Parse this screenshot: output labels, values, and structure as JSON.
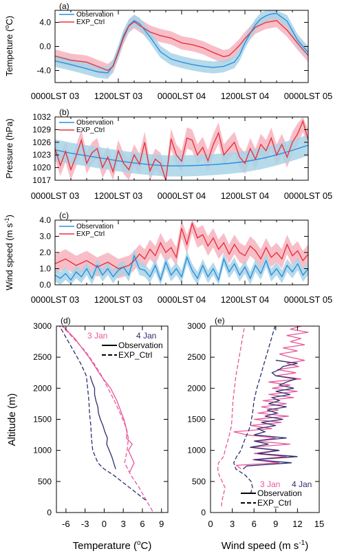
{
  "colors": {
    "observation": "#2a8ee0",
    "exp_ctrl": "#e8323c",
    "obs_band": "#a8d4e6",
    "exp_band": "#f5a8b5",
    "jan3": "#e8569a",
    "jan4": "#2b2d6e"
  },
  "time_axis_labels": [
    "0000LST 03",
    "1200LST 03",
    "0000LST 04",
    "1200LST 04",
    "0000LST 05"
  ],
  "chart_data": [
    {
      "panel": "(a)",
      "type": "line",
      "ylabel": "Tempeture (°C)",
      "ylabel_main": "Tempeture (",
      "ylabel_unit": "o",
      "ylabel_tail": "C)",
      "xlim_hours": [
        0,
        48
      ],
      "ylim": [
        -6,
        6
      ],
      "yticks": [
        4,
        0,
        -4
      ],
      "ytick_labels": [
        "4.0",
        "0.0",
        "-4.0"
      ],
      "legend": [
        "Observation",
        "EXP_Ctrl"
      ],
      "series": [
        {
          "name": "Observation",
          "x": [
            0,
            3,
            6,
            8,
            10,
            11,
            12,
            13,
            14,
            15,
            16,
            18,
            20,
            22,
            24,
            26,
            28,
            30,
            32,
            34,
            35,
            36,
            37,
            38,
            39,
            40,
            41,
            42,
            44,
            46,
            48
          ],
          "y": [
            -2.4,
            -3.0,
            -3.7,
            -4.2,
            -4.4,
            -3.2,
            -0.8,
            1.8,
            3.5,
            4.3,
            3.8,
            1.6,
            -0.9,
            -2.1,
            -2.6,
            -3.0,
            -3.3,
            -3.5,
            -3.3,
            -2.6,
            -1.4,
            0.6,
            2.2,
            3.6,
            4.6,
            5.1,
            5.4,
            5.5,
            4.2,
            1.0,
            -1.0
          ],
          "band_width": 1.0
        },
        {
          "name": "EXP_Ctrl",
          "x": [
            0,
            3,
            6,
            8,
            10,
            11,
            12,
            13,
            14,
            15,
            16,
            18,
            20,
            22,
            24,
            26,
            28,
            30,
            32,
            33,
            34,
            35,
            36,
            38,
            40,
            42,
            44,
            46,
            48
          ],
          "y": [
            -1.6,
            -2.3,
            -2.6,
            -3.3,
            -4.0,
            -3.3,
            -1.0,
            1.5,
            3.4,
            4.1,
            3.5,
            2.4,
            1.8,
            1.4,
            0.6,
            0.3,
            -0.2,
            -1.0,
            -1.7,
            -1.5,
            -0.7,
            0.2,
            1.3,
            3.2,
            4.0,
            4.3,
            2.7,
            0.5,
            -1.5
          ],
          "band_width": 1.1
        }
      ]
    },
    {
      "panel": "(b)",
      "type": "line",
      "ylabel": "Pressure (hPa)",
      "xlim_hours": [
        0,
        48
      ],
      "ylim": [
        1017,
        1032
      ],
      "yticks": [
        1032,
        1029,
        1026,
        1023,
        1020,
        1017
      ],
      "ytick_labels": [
        "1032",
        "1029",
        "1026",
        "1023",
        "1020",
        "1017"
      ],
      "legend": [
        "Observation",
        "EXP_Ctrl"
      ],
      "series": [
        {
          "name": "Observation",
          "x": [
            0,
            3,
            6,
            9,
            12,
            15,
            18,
            21,
            24,
            27,
            30,
            33,
            36,
            39,
            42,
            45,
            48
          ],
          "y": [
            1024.2,
            1023.4,
            1022.8,
            1022.2,
            1021.6,
            1021.1,
            1020.7,
            1020.4,
            1020.4,
            1020.5,
            1020.7,
            1021.0,
            1021.4,
            1022.1,
            1023.0,
            1024.1,
            1025.3
          ],
          "band_width": 2.5
        },
        {
          "name": "EXP_Ctrl",
          "x": [
            0,
            1,
            2,
            3,
            4,
            5,
            6,
            7,
            8,
            9,
            10,
            11,
            12,
            13,
            14,
            15,
            16,
            17,
            18,
            19,
            20,
            21,
            22,
            23,
            24,
            25,
            26,
            27,
            28,
            29,
            30,
            31,
            32,
            33,
            34,
            35,
            36,
            37,
            38,
            39,
            40,
            41,
            42,
            43,
            44,
            45,
            46,
            47,
            48
          ],
          "y": [
            1024.5,
            1020.5,
            1023.8,
            1019.5,
            1022.8,
            1026.5,
            1021.0,
            1023.5,
            1024.5,
            1020.0,
            1022.5,
            1019.0,
            1024.0,
            1021.0,
            1019.5,
            1023.0,
            1020.8,
            1026.0,
            1019.2,
            1022.0,
            1021.0,
            1017.0,
            1026.8,
            1023.0,
            1021.5,
            1027.0,
            1026.5,
            1023.0,
            1024.8,
            1021.6,
            1025.5,
            1028.2,
            1023.0,
            1024.5,
            1026.0,
            1022.5,
            1021.0,
            1024.5,
            1022.0,
            1025.5,
            1024.0,
            1027.0,
            1023.0,
            1025.5,
            1022.5,
            1026.0,
            1028.0,
            1031.0,
            1026.5
          ],
          "band_width": 2.5
        }
      ]
    },
    {
      "panel": "(c)",
      "type": "line",
      "ylabel": "Wind speed (m s⁻¹)",
      "ylabel_main": "Wind speed (m s",
      "ylabel_unit": "-1",
      "ylabel_tail": ")",
      "xlim_hours": [
        0,
        48
      ],
      "ylim": [
        0,
        4
      ],
      "yticks": [
        4,
        3,
        2,
        1,
        0
      ],
      "ytick_labels": [
        "4.0",
        "3.0",
        "2.0",
        "1.0",
        "0.0"
      ],
      "legend": [
        "Observation",
        "EXP_Ctrl"
      ],
      "series": [
        {
          "name": "Observation",
          "x": [
            0,
            1,
            2,
            3,
            4,
            5,
            6,
            7,
            8,
            9,
            10,
            11,
            12,
            13,
            14,
            15,
            16,
            17,
            18,
            19,
            20,
            21,
            22,
            23,
            24,
            25,
            26,
            27,
            28,
            29,
            30,
            31,
            32,
            33,
            34,
            35,
            36,
            37,
            38,
            39,
            40,
            41,
            42,
            43,
            44,
            45,
            46,
            47,
            48
          ],
          "y": [
            0.6,
            0.4,
            0.7,
            0.3,
            0.8,
            0.5,
            1.0,
            0.4,
            1.2,
            0.6,
            1.0,
            0.5,
            0.9,
            1.1,
            0.6,
            1.8,
            1.0,
            0.9,
            0.5,
            1.2,
            0.3,
            1.4,
            0.6,
            1.0,
            0.5,
            1.7,
            0.9,
            0.4,
            1.2,
            0.5,
            1.0,
            0.3,
            1.6,
            0.8,
            1.3,
            0.6,
            1.1,
            0.4,
            1.2,
            0.7,
            1.5,
            0.6,
            1.0,
            0.5,
            1.2,
            0.8,
            1.3,
            0.6,
            1.0
          ],
          "band_width": 0.4
        },
        {
          "name": "EXP_Ctrl",
          "x": [
            0,
            2,
            4,
            6,
            8,
            10,
            12,
            14,
            15,
            16,
            17,
            18,
            19,
            20,
            21,
            22,
            23,
            24,
            25,
            26,
            27,
            28,
            29,
            30,
            31,
            32,
            33,
            34,
            35,
            36,
            37,
            38,
            39,
            40,
            41,
            42,
            43,
            44,
            45,
            46,
            47,
            48
          ],
          "y": [
            1.3,
            1.6,
            1.2,
            1.5,
            1.1,
            1.4,
            1.0,
            1.2,
            1.5,
            1.9,
            1.6,
            2.2,
            1.8,
            2.6,
            2.0,
            2.3,
            1.7,
            3.5,
            2.5,
            3.8,
            2.9,
            3.1,
            2.4,
            2.9,
            2.2,
            2.6,
            1.9,
            2.5,
            2.0,
            1.8,
            2.4,
            2.1,
            1.6,
            2.3,
            1.7,
            2.0,
            1.6,
            2.5,
            1.8,
            2.1,
            1.5,
            1.9
          ],
          "band_width": 0.6
        }
      ]
    },
    {
      "panel": "(d)",
      "type": "line",
      "xlabel": "Temperature (°C)",
      "xlabel_main": "Temperature (",
      "xlabel_unit": "o",
      "xlabel_tail": "C)",
      "ylabel": "Altitude (m)",
      "xlim": [
        -7.5,
        10
      ],
      "ylim": [
        0,
        3000
      ],
      "xticks": [
        -6,
        -3,
        0,
        3,
        6,
        9
      ],
      "yticks": [
        0,
        500,
        1000,
        1500,
        2000,
        2500,
        3000
      ],
      "legend_dates": [
        "3 Jan",
        "4 Jan"
      ],
      "legend": [
        "Observation",
        "EXP_Ctrl"
      ],
      "series": [
        {
          "name": "3 Jan Observation",
          "date": "3 Jan",
          "dashed": false,
          "y": [
            650,
            800,
            1000,
            1100,
            1200,
            1300,
            1500,
            1800,
            2000,
            2200,
            2500,
            2800,
            3000
          ],
          "x": [
            4.0,
            4.7,
            3.8,
            4.4,
            3.5,
            3.6,
            3.1,
            2.0,
            1.0,
            -0.5,
            -2.4,
            -4.6,
            -6.5
          ]
        },
        {
          "name": "4 Jan Observation",
          "date": "4 Jan",
          "dashed": false,
          "y": [
            700,
            800,
            900,
            1000,
            1100,
            1200,
            1300,
            1400,
            1500,
            1600,
            1700,
            1800,
            1900,
            2000,
            2100,
            2200
          ],
          "x": [
            1.8,
            1.5,
            1.2,
            0.8,
            0.4,
            0.5,
            0.1,
            -0.2,
            -0.6,
            -0.9,
            -1.0,
            -1.3,
            -1.5,
            -1.5,
            -1.9,
            -2.2
          ]
        },
        {
          "name": "3 Jan EXP_Ctrl",
          "date": "3 Jan",
          "dashed": true,
          "y": [
            20,
            200,
            400,
            600,
            800,
            1000,
            1200,
            1400,
            1600,
            1800,
            2000,
            2200,
            2400,
            2600,
            2800,
            3000
          ],
          "x": [
            7.6,
            6.6,
            5.5,
            4.2,
            3.2,
            3.6,
            3.8,
            3.3,
            2.5,
            1.6,
            0.6,
            -0.4,
            -1.6,
            -3.0,
            -4.8,
            -6.6
          ]
        },
        {
          "name": "4 Jan EXP_Ctrl",
          "date": "4 Jan",
          "dashed": true,
          "y": [
            200,
            400,
            600,
            700,
            800,
            1000,
            1200,
            1400,
            1600,
            1800,
            2000,
            2200,
            2400,
            2600,
            2800,
            3000
          ],
          "x": [
            6.5,
            4.0,
            1.5,
            0.0,
            -1.0,
            -1.8,
            -2.0,
            -2.1,
            -2.3,
            -2.4,
            -2.6,
            -2.8,
            -3.7,
            -4.8,
            -5.9,
            -7.0
          ]
        }
      ]
    },
    {
      "panel": "(e)",
      "type": "line",
      "xlabel": "Wind speed (m s⁻¹)",
      "xlabel_main": "Wind speed (m s",
      "xlabel_unit": "-1",
      "xlabel_tail": ")",
      "xlim": [
        0,
        15
      ],
      "ylim": [
        0,
        3000
      ],
      "xticks": [
        0,
        3,
        6,
        9,
        12,
        15
      ],
      "yticks": [
        0,
        500,
        1000,
        1500,
        2000,
        2500,
        3000
      ],
      "legend_dates": [
        "3 Jan",
        "4 Jan"
      ],
      "legend": [
        "Observation",
        "EXP_Ctrl"
      ],
      "series": [
        {
          "name": "3 Jan Observation",
          "date": "3 Jan",
          "dashed": false,
          "y": [
            700,
            760,
            800,
            850,
            900,
            950,
            1000,
            1050,
            1100,
            1150,
            1200,
            1250,
            1300,
            1350,
            1400,
            1450,
            1500,
            1550,
            1600,
            1650,
            1700,
            1750,
            1800,
            1850,
            1900,
            1950,
            2000,
            2050,
            2100,
            2150,
            2200,
            2250,
            2300,
            2350,
            2400,
            2450,
            2500,
            2550,
            2600,
            2650,
            2700,
            2750,
            2800,
            2850,
            2900,
            2950,
            3000
          ],
          "x": [
            4.2,
            3.6,
            9.5,
            5.8,
            10.5,
            6.0,
            9.2,
            5.4,
            11.0,
            6.2,
            9.0,
            5.0,
            3.2,
            8.5,
            5.5,
            9.8,
            6.0,
            10.8,
            6.5,
            9.4,
            7.0,
            10.5,
            7.2,
            11.5,
            8.0,
            12.0,
            8.5,
            11.0,
            8.0,
            12.5,
            9.0,
            11.8,
            9.2,
            12.2,
            10.5,
            13.0,
            11.0,
            9.5,
            12.0,
            10.0,
            13.0,
            11.0,
            12.5,
            10.5,
            13.5,
            11.0,
            12.5
          ]
        },
        {
          "name": "4 Jan Observation",
          "date": "4 Jan",
          "dashed": false,
          "y": [
            700,
            750,
            800,
            850,
            900,
            950,
            1000,
            1050,
            1100,
            1150,
            1200,
            1250,
            1300,
            1350,
            1400,
            1450,
            1500,
            1550,
            1600,
            1650,
            1700,
            1750,
            1800,
            1850,
            1900,
            1950,
            2000,
            2050,
            2100,
            2150,
            2200,
            2250,
            2300,
            2350,
            2400,
            2450
          ],
          "x": [
            4.5,
            5.0,
            11.2,
            6.0,
            12.0,
            6.5,
            9.5,
            5.5,
            8.0,
            6.0,
            10.5,
            6.0,
            7.5,
            6.5,
            9.0,
            7.0,
            10.0,
            7.5,
            9.2,
            7.8,
            10.5,
            8.0,
            9.5,
            8.5,
            11.0,
            9.0,
            11.5,
            9.5,
            10.5,
            11.8,
            9.0,
            8.5,
            9.5,
            10.0,
            12.0,
            9.0
          ]
        },
        {
          "name": "3 Jan EXP_Ctrl",
          "date": "3 Jan",
          "dashed": true,
          "y": [
            100,
            200,
            300,
            400,
            500,
            600,
            700,
            800,
            900,
            1000,
            1200,
            1400,
            1600,
            1800,
            2000,
            2200,
            2400,
            2600,
            2800,
            3000
          ],
          "x": [
            1.5,
            1.6,
            1.8,
            2.0,
            1.6,
            1.2,
            1.0,
            1.1,
            1.8,
            2.0,
            2.5,
            2.9,
            3.0,
            3.1,
            3.3,
            3.5,
            3.8,
            4.1,
            4.4,
            4.7
          ]
        },
        {
          "name": "4 Jan EXP_Ctrl",
          "date": "4 Jan",
          "dashed": true,
          "y": [
            300,
            400,
            500,
            600,
            700,
            800,
            900,
            1000,
            1100,
            1200,
            1300,
            1400,
            1600,
            1800,
            2000,
            2200,
            2400,
            2600,
            2800,
            3000
          ],
          "x": [
            5.5,
            5.8,
            5.6,
            4.8,
            3.5,
            3.2,
            3.6,
            4.2,
            4.5,
            4.8,
            5.2,
            5.5,
            5.8,
            6.0,
            6.4,
            6.9,
            7.4,
            7.9,
            8.4,
            8.9
          ]
        }
      ]
    }
  ]
}
